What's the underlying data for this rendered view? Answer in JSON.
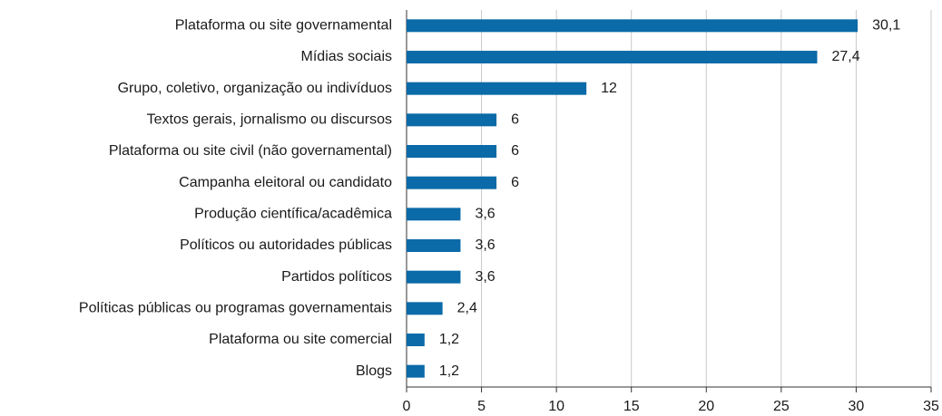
{
  "chart_data": {
    "type": "bar",
    "orientation": "horizontal",
    "categories": [
      "Plataforma ou site governamental",
      "Mídias sociais",
      "Grupo, coletivo, organização ou indivíduos",
      "Textos gerais, jornalismo ou discursos",
      "Plataforma ou site civil (não governamental)",
      "Campanha eleitoral ou candidato",
      "Produção científica/acadêmica",
      "Políticos ou autoridades públicas",
      "Partidos políticos",
      "Políticas públicas ou programas governamentais",
      "Plataforma ou site comercial",
      "Blogs"
    ],
    "values": [
      30.1,
      27.4,
      12,
      6,
      6,
      6,
      3.6,
      3.6,
      3.6,
      2.4,
      1.2,
      1.2
    ],
    "value_labels": [
      "30,1",
      "27,4",
      "12",
      "6",
      "6",
      "6",
      "3,6",
      "3,6",
      "3,6",
      "2,4",
      "1,2",
      "1,2"
    ],
    "color": "#0b6aa8",
    "xlim": [
      0,
      35
    ],
    "xticks": [
      0,
      5,
      10,
      15,
      20,
      25,
      30,
      35
    ],
    "grid": true
  }
}
